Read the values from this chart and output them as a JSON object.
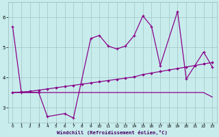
{
  "x": [
    0,
    1,
    2,
    3,
    4,
    5,
    6,
    7,
    8,
    9,
    10,
    11,
    12,
    13,
    14,
    15,
    16,
    17,
    18,
    19,
    20,
    21,
    22,
    23
  ],
  "line1": [
    5.7,
    3.5,
    null,
    3.5,
    2.7,
    null,
    2.8,
    2.65,
    null,
    5.3,
    5.4,
    5.05,
    4.95,
    5.05,
    5.4,
    6.05,
    5.7,
    4.4,
    null,
    6.2,
    3.95,
    null,
    4.85,
    4.35
  ],
  "line2": [
    3.5,
    3.5,
    3.5,
    3.5,
    3.5,
    3.5,
    3.5,
    3.5,
    3.5,
    3.5,
    3.5,
    3.5,
    3.5,
    3.5,
    3.5,
    3.5,
    3.5,
    3.5,
    3.5,
    3.5,
    3.5,
    3.5,
    3.5,
    3.35
  ],
  "line3": [
    3.5,
    3.52,
    3.54,
    3.58,
    3.62,
    3.66,
    3.7,
    3.74,
    3.78,
    3.82,
    3.86,
    3.9,
    3.94,
    3.98,
    4.02,
    4.1,
    4.15,
    4.2,
    4.25,
    4.3,
    4.35,
    4.4,
    4.45,
    4.5
  ],
  "background_color": "#c8ecec",
  "grid_color": "#a0c4c4",
  "line_color": "#880088",
  "xlabel": "Windchill (Refroidissement éolien,°C)",
  "ylim": [
    2.5,
    6.5
  ],
  "xlim": [
    -0.5,
    23.5
  ],
  "yticks": [
    3,
    4,
    5,
    6
  ],
  "xticks": [
    0,
    1,
    2,
    3,
    4,
    5,
    6,
    7,
    8,
    9,
    10,
    11,
    12,
    13,
    14,
    15,
    16,
    17,
    18,
    19,
    20,
    21,
    22,
    23
  ]
}
